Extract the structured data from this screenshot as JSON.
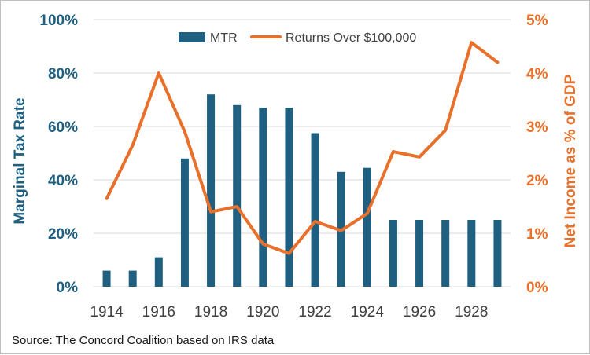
{
  "chart_data": {
    "type": "bar",
    "categories": [
      "1914",
      "1915",
      "1916",
      "1917",
      "1918",
      "1919",
      "1920",
      "1921",
      "1922",
      "1923",
      "1924",
      "1925",
      "1926",
      "1927",
      "1928",
      "1929"
    ],
    "x_tick_labels": [
      "1914",
      "1916",
      "1918",
      "1920",
      "1922",
      "1924",
      "1926",
      "1928"
    ],
    "series": [
      {
        "name": "MTR",
        "type": "bar",
        "axis": "left",
        "color": "#1f5f80",
        "values": [
          6,
          6,
          11,
          48,
          72,
          68,
          67,
          67,
          57.5,
          43,
          44.5,
          25,
          25,
          25,
          25,
          25
        ]
      },
      {
        "name": "Returns Over $100,000",
        "type": "line",
        "axis": "right",
        "color": "#e8702a",
        "values": [
          1.65,
          2.65,
          4.0,
          2.9,
          1.4,
          1.5,
          0.8,
          0.62,
          1.22,
          1.05,
          1.37,
          2.53,
          2.43,
          2.93,
          4.57,
          4.2
        ]
      }
    ],
    "ylabel": "Marginal Tax Rate",
    "ylabel_right": "Net Income as % of GDP",
    "ylim": [
      0,
      100
    ],
    "ylim_right": [
      0,
      5
    ],
    "y_ticks": [
      "0%",
      "20%",
      "40%",
      "60%",
      "80%",
      "100%"
    ],
    "y_ticks_right": [
      "0%",
      "1%",
      "2%",
      "3%",
      "4%",
      "5%"
    ],
    "legend_position": "top-center",
    "grid": true,
    "source": "Source: The Concord Coalition based on IRS data"
  }
}
